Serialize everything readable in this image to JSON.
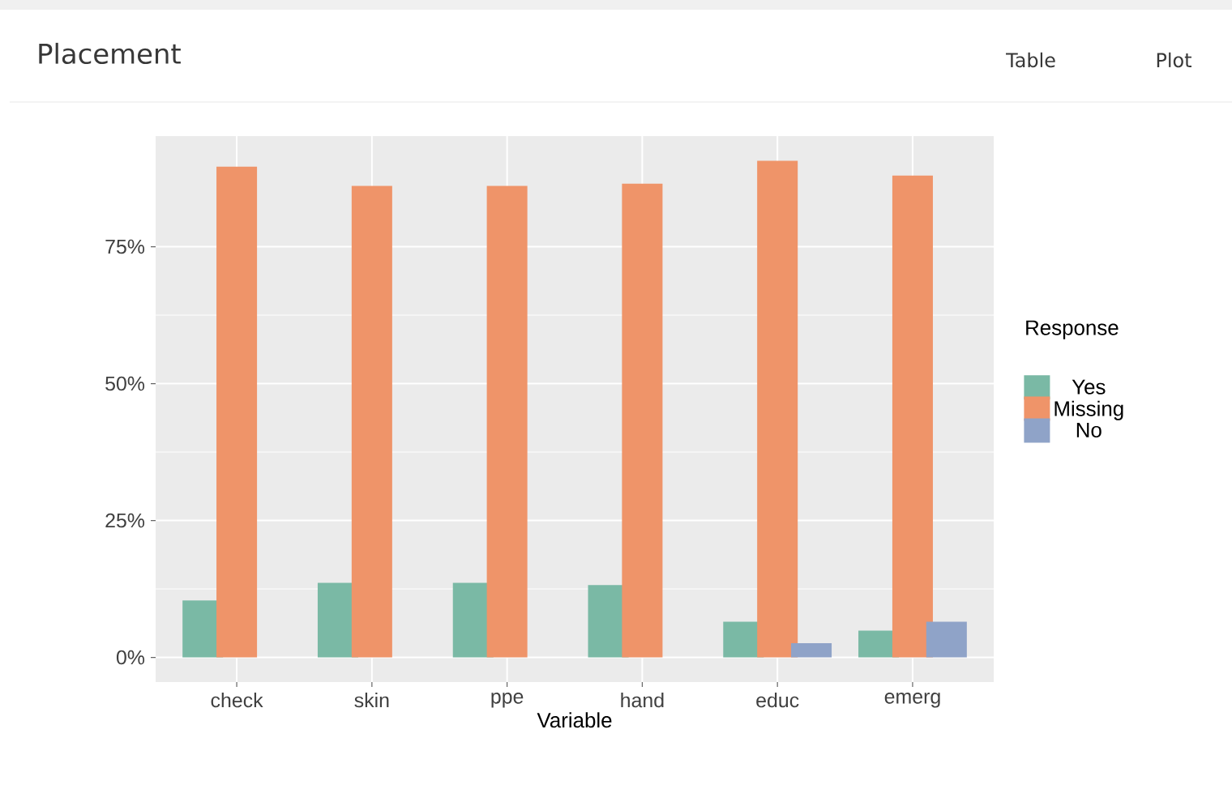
{
  "chart_data": {
    "type": "bar",
    "title": "Placement",
    "annotations": [
      "Table",
      "Plot"
    ],
    "xlabel": "Variable",
    "legend_title": "Response",
    "categories": [
      "check",
      "skin",
      "ppe",
      "hand",
      "educ",
      "emerg"
    ],
    "series": [
      {
        "name": "Yes",
        "color": "#7ab9a5",
        "values": [
          10.4,
          13.6,
          13.6,
          13.2,
          6.5,
          4.9
        ]
      },
      {
        "name": "Missing",
        "color": "#ef9469",
        "values": [
          89.6,
          86.1,
          86.1,
          86.5,
          90.7,
          88.0
        ]
      },
      {
        "name": "No",
        "color": "#8fa3c8",
        "values": [
          null,
          null,
          null,
          null,
          2.6,
          6.5
        ]
      }
    ],
    "ylim": [
      -4.5,
      95.2
    ],
    "yticks": [
      {
        "value": 0,
        "label": "0%"
      },
      {
        "value": 25,
        "label": "25%"
      },
      {
        "value": 50,
        "label": "50%"
      },
      {
        "value": 75,
        "label": "75%"
      }
    ],
    "grid": true,
    "legend": "right"
  }
}
